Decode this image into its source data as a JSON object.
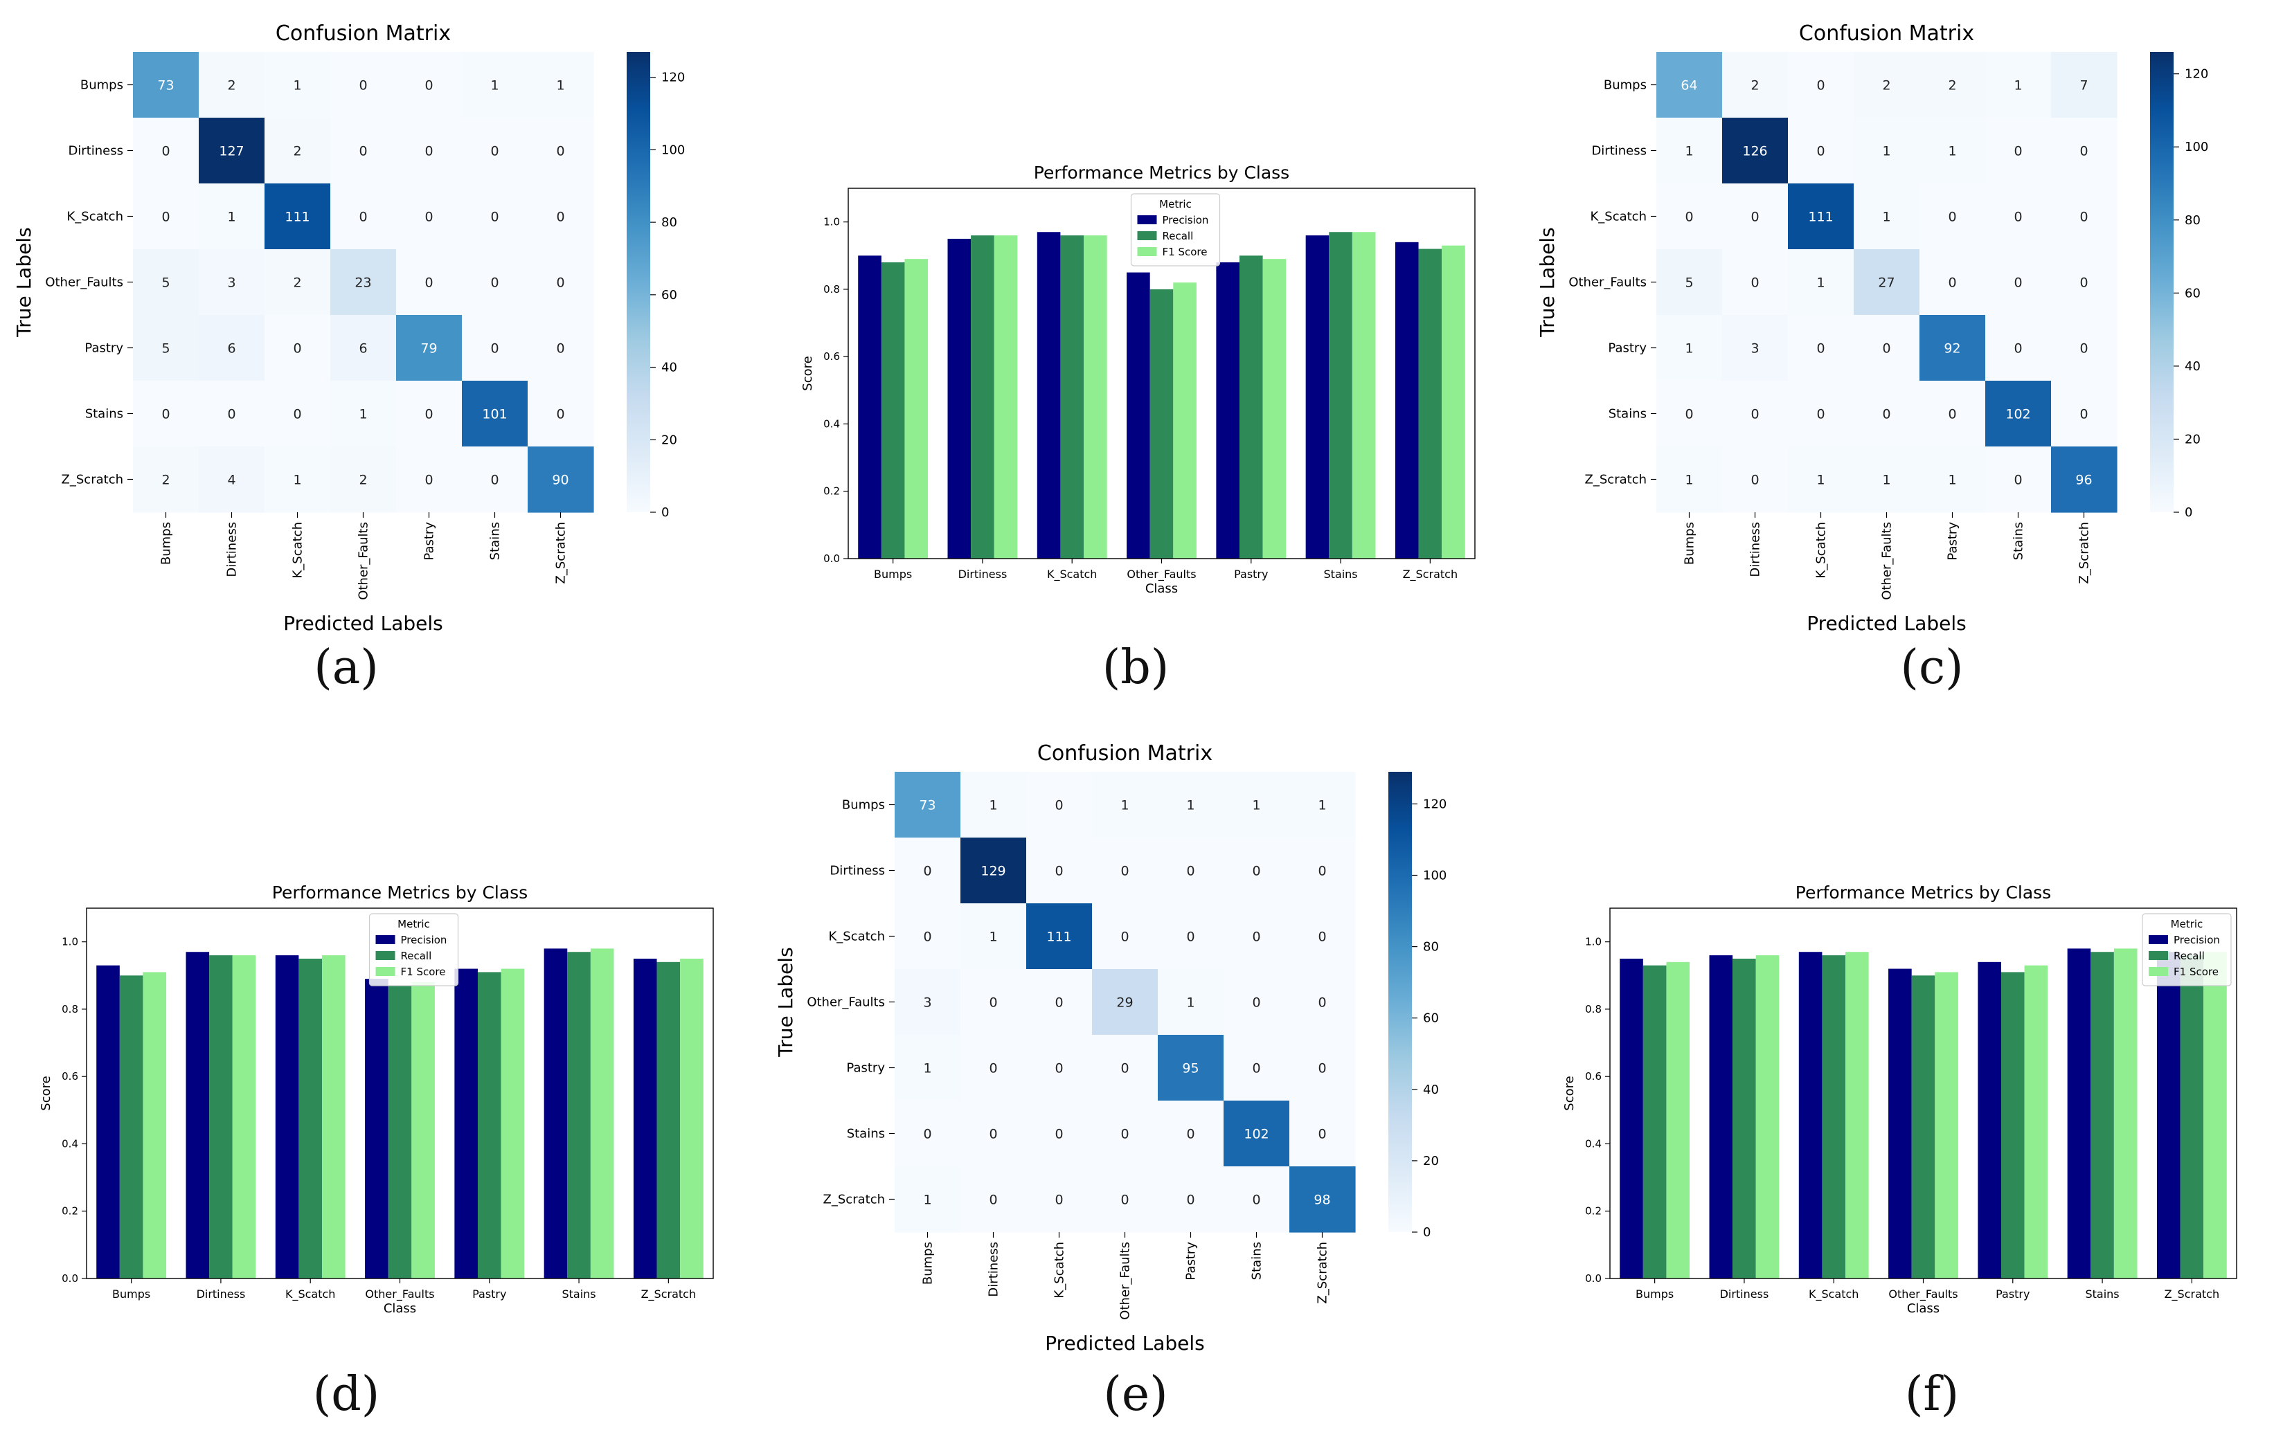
{
  "chart_data": [
    {
      "panel": "a",
      "type": "heatmap",
      "title": "Confusion Matrix",
      "xlabel": "Predicted Labels",
      "ylabel": "True Labels",
      "classes": [
        "Bumps",
        "Dirtiness",
        "K_Scatch",
        "Other_Faults",
        "Pastry",
        "Stains",
        "Z_Scratch"
      ],
      "matrix": [
        [
          73,
          2,
          1,
          0,
          0,
          1,
          1
        ],
        [
          0,
          127,
          2,
          0,
          0,
          0,
          0
        ],
        [
          0,
          1,
          111,
          0,
          0,
          0,
          0
        ],
        [
          5,
          3,
          2,
          23,
          0,
          0,
          0
        ],
        [
          5,
          6,
          0,
          6,
          79,
          0,
          0
        ],
        [
          0,
          0,
          0,
          1,
          0,
          101,
          0
        ],
        [
          2,
          4,
          1,
          2,
          0,
          0,
          90
        ]
      ],
      "colorbar_max": 127,
      "colorbar_ticks": [
        0,
        20,
        40,
        60,
        80,
        100,
        120
      ]
    },
    {
      "panel": "b",
      "type": "bar",
      "title": "Performance Metrics by Class",
      "xlabel": "Class",
      "ylabel": "Score",
      "categories": [
        "Bumps",
        "Dirtiness",
        "K_Scatch",
        "Other_Faults",
        "Pastry",
        "Stains",
        "Z_Scratch"
      ],
      "series": [
        {
          "name": "Precision",
          "values": [
            0.9,
            0.95,
            0.97,
            0.85,
            0.88,
            0.96,
            0.94
          ]
        },
        {
          "name": "Recall",
          "values": [
            0.88,
            0.96,
            0.96,
            0.8,
            0.9,
            0.97,
            0.92
          ]
        },
        {
          "name": "F1 Score",
          "values": [
            0.89,
            0.96,
            0.96,
            0.82,
            0.89,
            0.97,
            0.93
          ]
        }
      ],
      "ylim": [
        0,
        1.1
      ],
      "yticks": [
        "0.0",
        "0.2",
        "0.4",
        "0.6",
        "0.8",
        "1.0"
      ],
      "legend_title": "Metric",
      "legend_placement": "top-center"
    },
    {
      "panel": "c",
      "type": "heatmap",
      "title": "Confusion Matrix",
      "xlabel": "Predicted Labels",
      "ylabel": "True Labels",
      "classes": [
        "Bumps",
        "Dirtiness",
        "K_Scatch",
        "Other_Faults",
        "Pastry",
        "Stains",
        "Z_Scratch"
      ],
      "matrix": [
        [
          64,
          2,
          0,
          2,
          2,
          1,
          7
        ],
        [
          1,
          126,
          0,
          1,
          1,
          0,
          0
        ],
        [
          0,
          0,
          111,
          1,
          0,
          0,
          0
        ],
        [
          5,
          0,
          1,
          27,
          0,
          0,
          0
        ],
        [
          1,
          3,
          0,
          0,
          92,
          0,
          0
        ],
        [
          0,
          0,
          0,
          0,
          0,
          102,
          0
        ],
        [
          1,
          0,
          1,
          1,
          1,
          0,
          96
        ]
      ],
      "colorbar_max": 126,
      "colorbar_ticks": [
        0,
        20,
        40,
        60,
        80,
        100,
        120
      ]
    },
    {
      "panel": "d",
      "type": "bar",
      "title": "Performance Metrics by Class",
      "xlabel": "Class",
      "ylabel": "Score",
      "categories": [
        "Bumps",
        "Dirtiness",
        "K_Scatch",
        "Other_Faults",
        "Pastry",
        "Stains",
        "Z_Scratch"
      ],
      "series": [
        {
          "name": "Precision",
          "values": [
            0.93,
            0.97,
            0.96,
            0.89,
            0.92,
            0.98,
            0.95
          ]
        },
        {
          "name": "Recall",
          "values": [
            0.9,
            0.96,
            0.95,
            0.87,
            0.91,
            0.97,
            0.94
          ]
        },
        {
          "name": "F1 Score",
          "values": [
            0.91,
            0.96,
            0.96,
            0.88,
            0.92,
            0.98,
            0.95
          ]
        }
      ],
      "ylim": [
        0,
        1.1
      ],
      "yticks": [
        "0.0",
        "0.2",
        "0.4",
        "0.6",
        "0.8",
        "1.0"
      ],
      "legend_title": "Metric",
      "legend_placement": "top-center"
    },
    {
      "panel": "e",
      "type": "heatmap",
      "title": "Confusion Matrix",
      "xlabel": "Predicted Labels",
      "ylabel": "True Labels",
      "classes": [
        "Bumps",
        "Dirtiness",
        "K_Scatch",
        "Other_Faults",
        "Pastry",
        "Stains",
        "Z_Scratch"
      ],
      "matrix": [
        [
          73,
          1,
          0,
          1,
          1,
          1,
          1
        ],
        [
          0,
          129,
          0,
          0,
          0,
          0,
          0
        ],
        [
          0,
          1,
          111,
          0,
          0,
          0,
          0
        ],
        [
          3,
          0,
          0,
          29,
          1,
          0,
          0
        ],
        [
          1,
          0,
          0,
          0,
          95,
          0,
          0
        ],
        [
          0,
          0,
          0,
          0,
          0,
          102,
          0
        ],
        [
          1,
          0,
          0,
          0,
          0,
          0,
          98
        ]
      ],
      "colorbar_max": 129,
      "colorbar_ticks": [
        0,
        20,
        40,
        60,
        80,
        100,
        120
      ]
    },
    {
      "panel": "f",
      "type": "bar",
      "title": "Performance Metrics by Class",
      "xlabel": "Class",
      "ylabel": "Score",
      "categories": [
        "Bumps",
        "Dirtiness",
        "K_Scatch",
        "Other_Faults",
        "Pastry",
        "Stains",
        "Z_Scratch"
      ],
      "series": [
        {
          "name": "Precision",
          "values": [
            0.95,
            0.96,
            0.97,
            0.92,
            0.94,
            0.98,
            0.97
          ]
        },
        {
          "name": "Recall",
          "values": [
            0.93,
            0.95,
            0.96,
            0.9,
            0.91,
            0.97,
            0.96
          ]
        },
        {
          "name": "F1 Score",
          "values": [
            0.94,
            0.96,
            0.97,
            0.91,
            0.93,
            0.98,
            0.97
          ]
        }
      ],
      "ylim": [
        0,
        1.1
      ],
      "yticks": [
        "0.0",
        "0.2",
        "0.4",
        "0.6",
        "0.8",
        "1.0"
      ],
      "legend_title": "Metric",
      "legend_placement": "top-right"
    }
  ],
  "captions": [
    "(a)",
    "(b)",
    "(c)",
    "(d)",
    "(e)",
    "(f)"
  ],
  "colors": {
    "precision": "#000080",
    "recall": "#2e8b57",
    "f1": "#90ee90",
    "heat_low": "#f7fbff",
    "heat_high": "#08306b"
  }
}
